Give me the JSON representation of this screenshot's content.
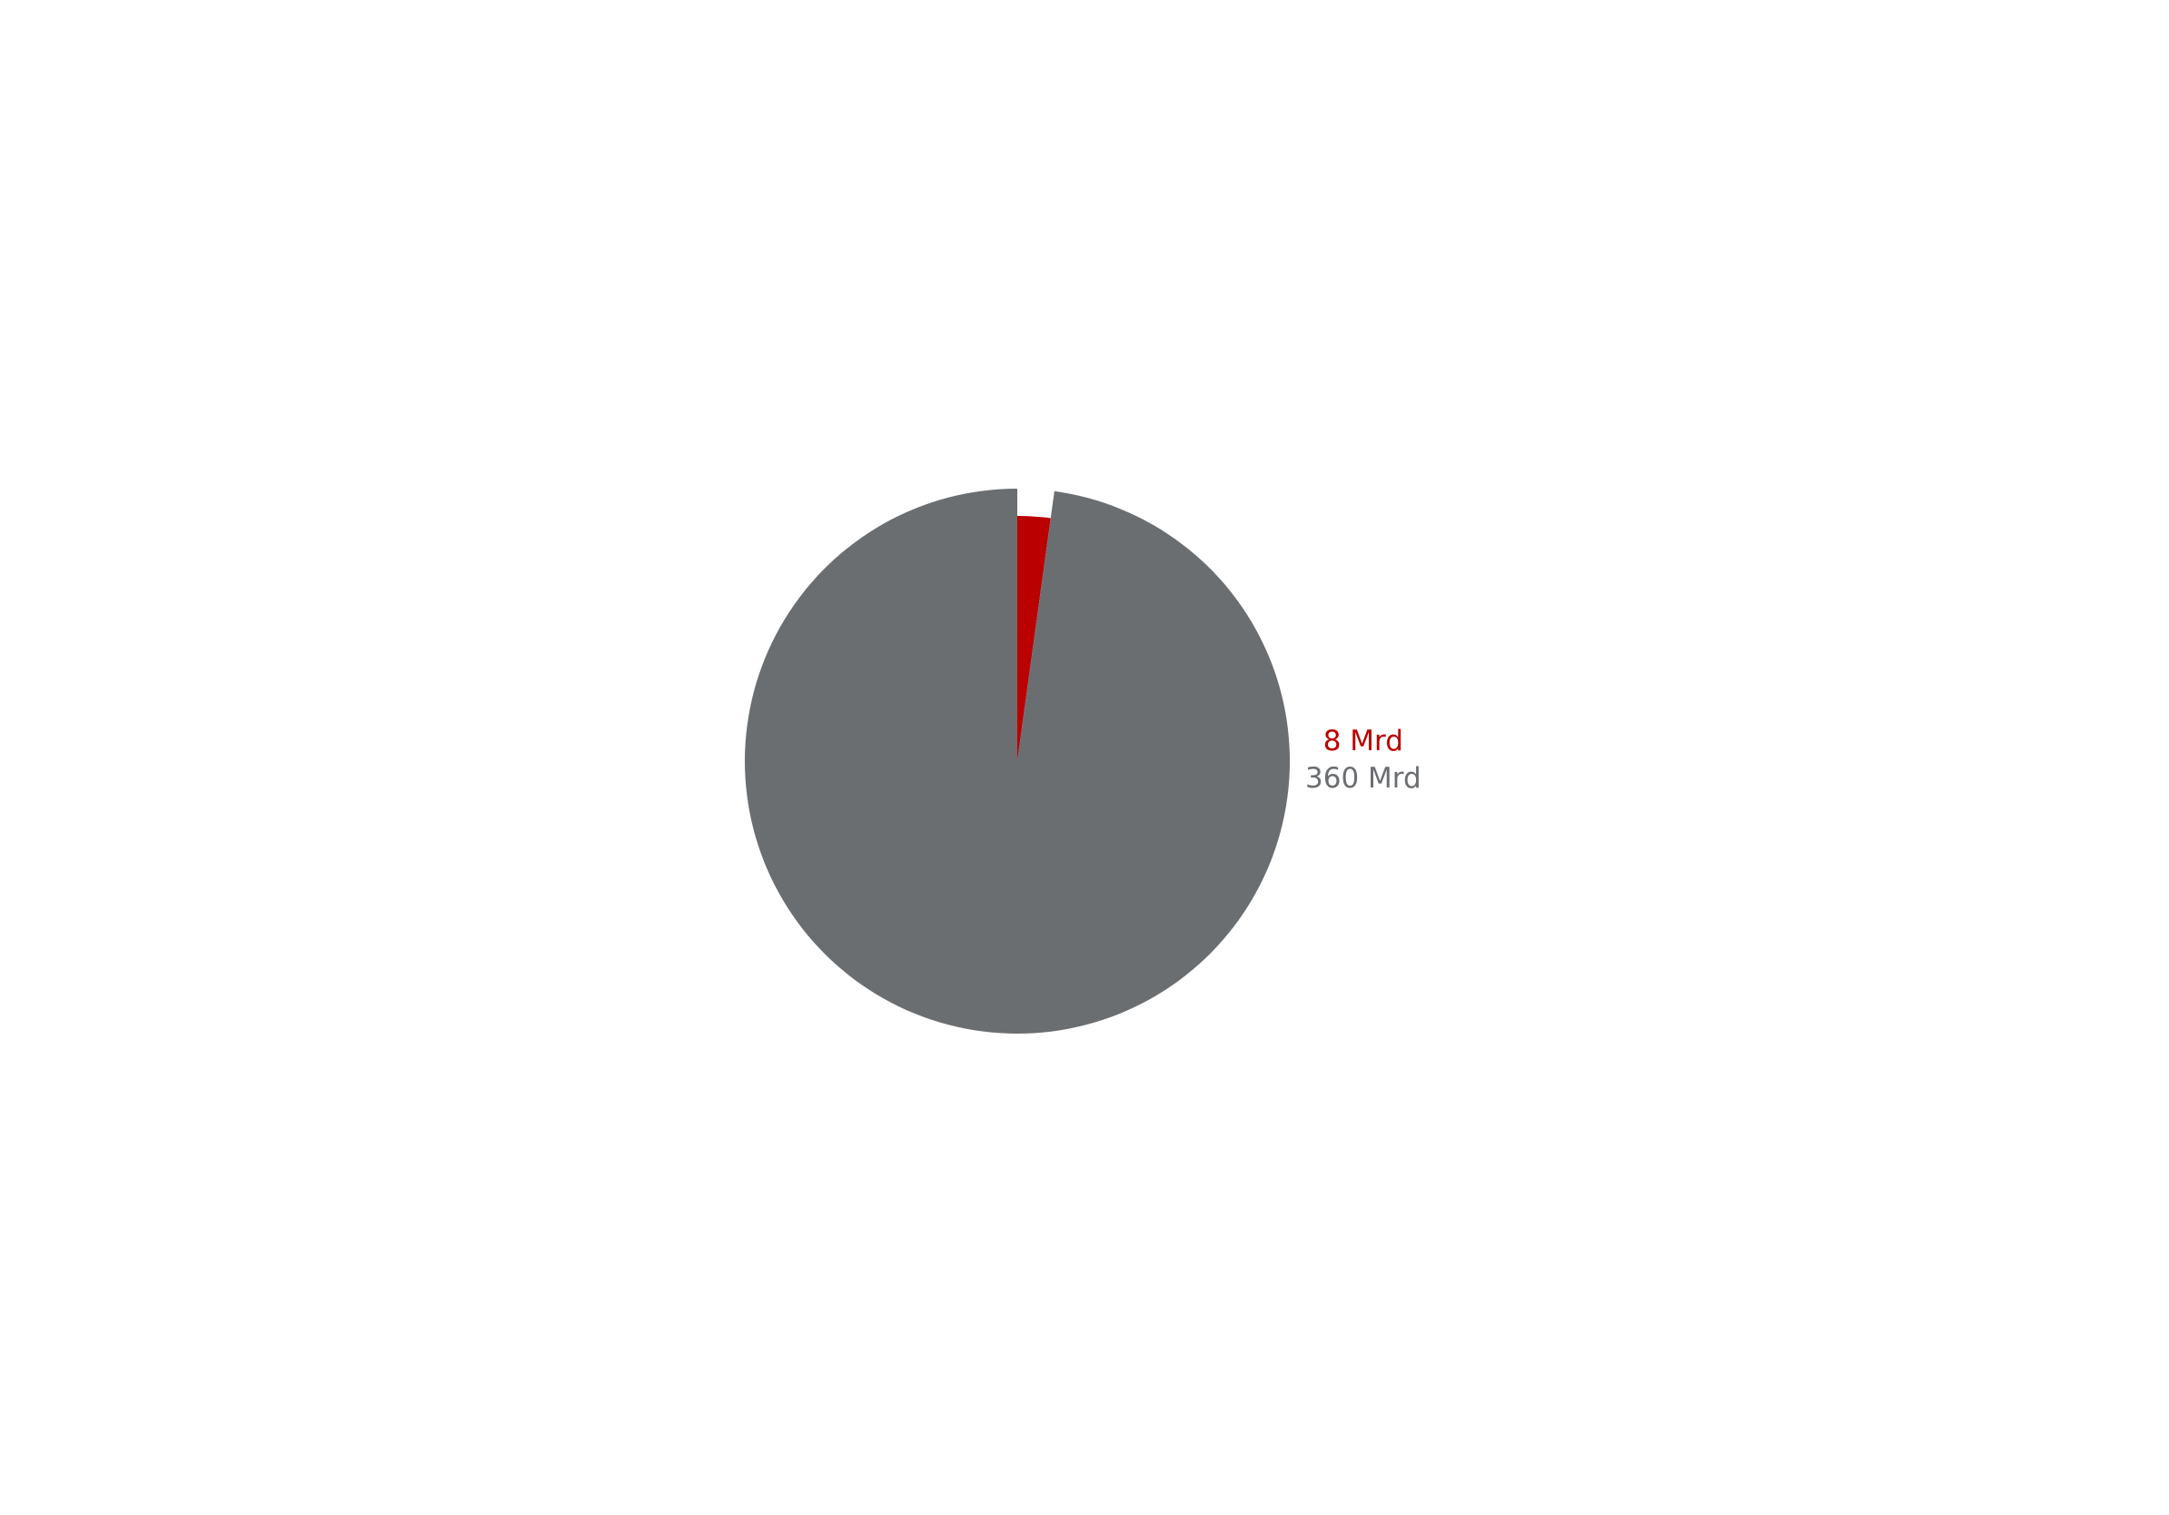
{
  "chart_data": {
    "type": "pie",
    "title": "",
    "slices": [
      {
        "label": "8 Mrd",
        "value": 8,
        "color": "#bb0000",
        "radius_scale": 0.9
      },
      {
        "label": "360 Mrd",
        "value": 360,
        "color": "#6b6e71",
        "radius_scale": 1.0
      }
    ],
    "start_angle_deg": 0,
    "direction": "clockwise",
    "legend": "right"
  }
}
